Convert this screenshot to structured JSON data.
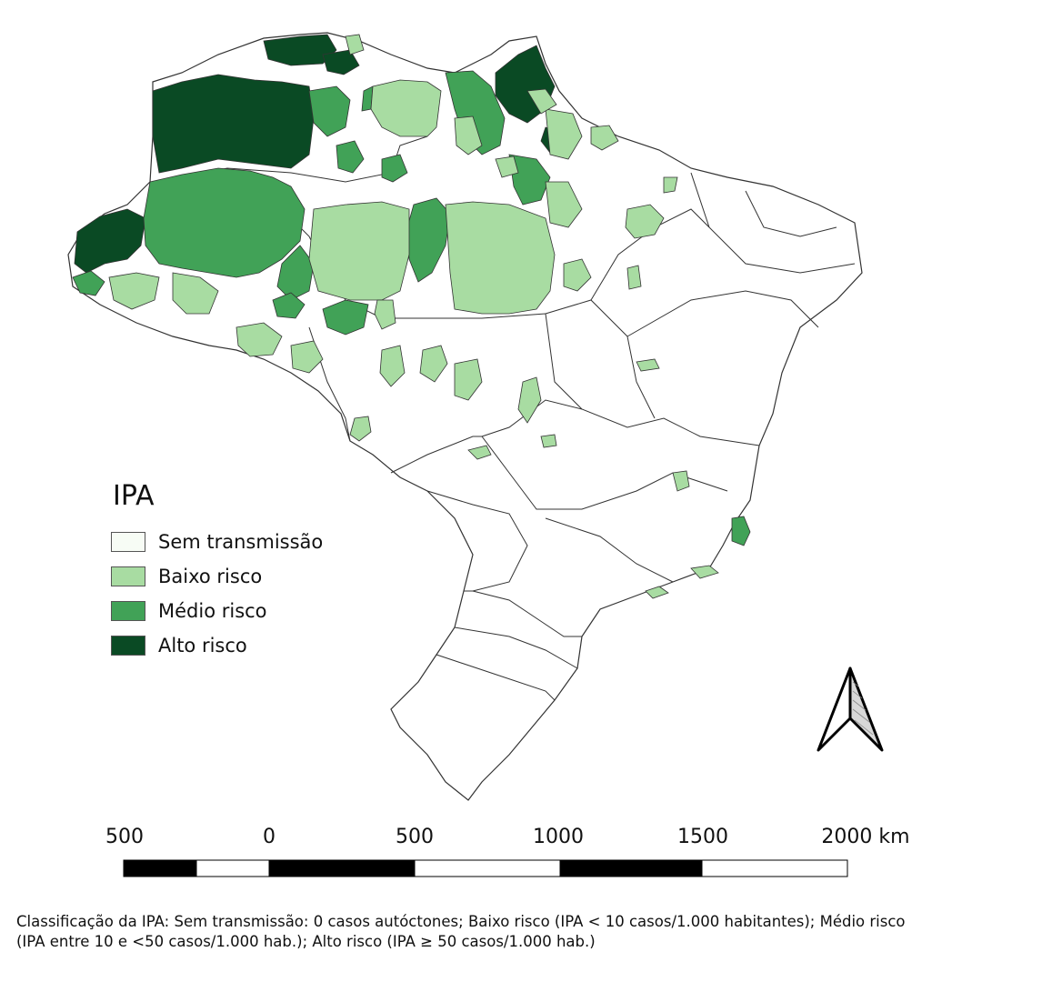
{
  "legend": {
    "title": "IPA",
    "items": [
      {
        "label": "Sem transmissão",
        "color": "#f7fcf5"
      },
      {
        "label": "Baixo risco",
        "color": "#a8dca2"
      },
      {
        "label": "Médio risco",
        "color": "#41a257"
      },
      {
        "label": "Alto risco",
        "color": "#0a4a24"
      }
    ]
  },
  "scale_bar": {
    "labels": [
      "500",
      "0",
      "500",
      "1000",
      "1500",
      "2000 km"
    ]
  },
  "caption": {
    "line1": "Classificação da IPA: Sem transmissão: 0 casos autóctones; Baixo risco (IPA < 10 casos/1.000 habitantes); Médio risco",
    "line2": "(IPA entre 10 e <50 casos/1.000 hab.); Alto risco (IPA ≥ 50 casos/1.000 hab.)"
  },
  "north_arrow": {
    "icon": "north-arrow-icon"
  }
}
